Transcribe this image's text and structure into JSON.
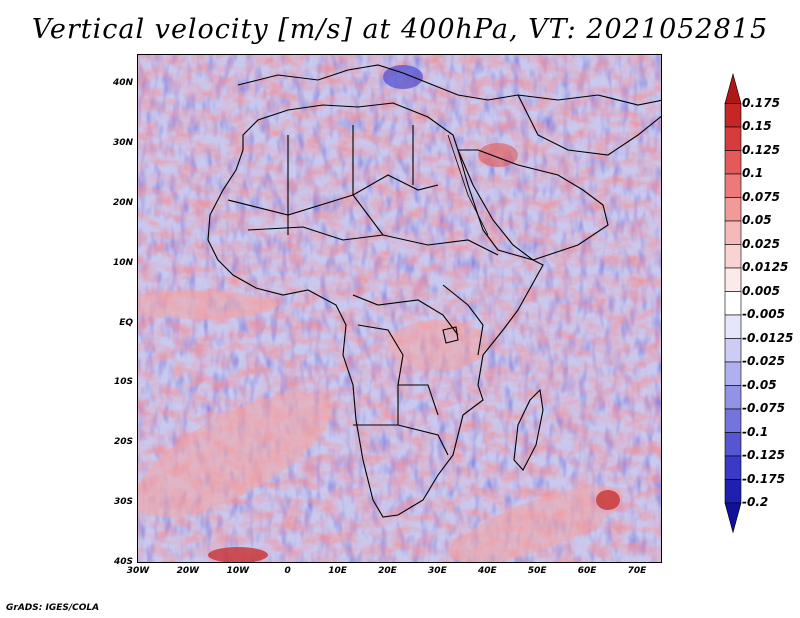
{
  "title": "Vertical velocity [m/s] at 400hPa, VT: 2021052815",
  "footer": "GrADS: IGES/COLA",
  "lat_labels": [
    "40N",
    "30N",
    "20N",
    "10N",
    "EQ",
    "10S",
    "20S",
    "30S",
    "40S"
  ],
  "lon_labels": [
    "30W",
    "20W",
    "10W",
    "0",
    "10E",
    "20E",
    "30E",
    "40E",
    "50E",
    "60E",
    "70E"
  ],
  "colorbar": {
    "labels": [
      "0.175",
      "0.15",
      "0.125",
      "0.1",
      "0.075",
      "0.05",
      "0.025",
      "0.0125",
      "0.005",
      "-0.005",
      "-0.0125",
      "-0.025",
      "-0.05",
      "-0.075",
      "-0.1",
      "-0.125",
      "-0.175",
      "-0.2"
    ],
    "colors": [
      "#b01818",
      "#c52626",
      "#d63c3c",
      "#e45a5a",
      "#ec7a7a",
      "#f29a9a",
      "#f6b9b9",
      "#f9d2d2",
      "#fce9e9",
      "#ffffff",
      "#e6e6fa",
      "#ccccf5",
      "#b0b0ee",
      "#9292e6",
      "#7474dd",
      "#5656d2",
      "#3a3ac6",
      "#1f1fb0",
      "#10109a"
    ]
  }
}
